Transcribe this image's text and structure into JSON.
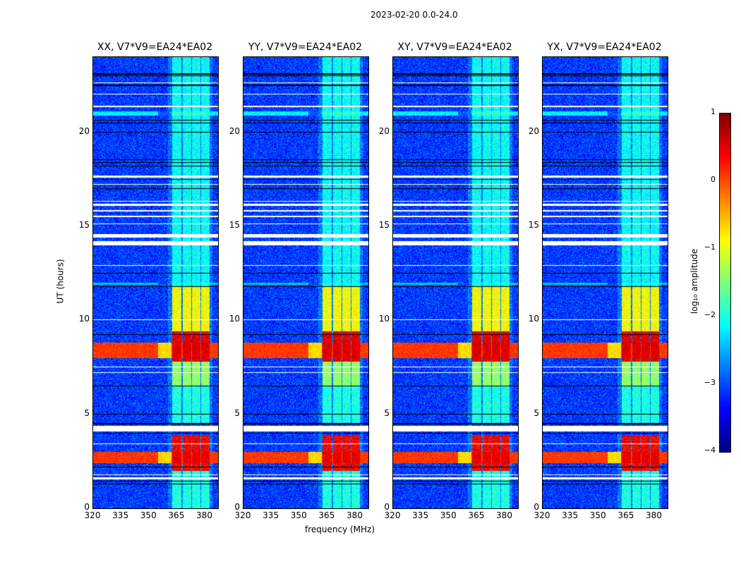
{
  "chart_data": {
    "type": "heatmap",
    "suptitle": "2023-02-20 0.0-24.0",
    "xlabel": "frequency (MHz)",
    "ylabel": "UT (hours)",
    "xlim": [
      320,
      387
    ],
    "ylim": [
      0,
      24
    ],
    "xticks": [
      "320",
      "335",
      "350",
      "365",
      "380"
    ],
    "xtick_values": [
      320,
      335,
      350,
      365,
      380
    ],
    "yticks": [
      "0",
      "5",
      "10",
      "15",
      "20"
    ],
    "ytick_values": [
      0,
      5,
      10,
      15,
      20
    ],
    "panels": [
      {
        "title": "XX, V7*V9=EA24*EA02"
      },
      {
        "title": "YY, V7*V9=EA24*EA02"
      },
      {
        "title": "XY, V7*V9=EA24*EA02"
      },
      {
        "title": "YX, V7*V9=EA24*EA02"
      }
    ],
    "colorbar": {
      "label": "log₁₀ amplitude",
      "range": [
        -4,
        1
      ],
      "ticks": [
        "1",
        "0",
        "−1",
        "−2",
        "−3",
        "−4"
      ],
      "tick_values": [
        1,
        0,
        -1,
        -2,
        -3,
        -4
      ],
      "colormap": "jet"
    },
    "background_log_amplitude": -3.1,
    "rfi_channels_mhz": [
      [
        362.3,
        367.2
      ],
      [
        368,
        372.5
      ],
      [
        373,
        377.4
      ],
      [
        378,
        382.6
      ]
    ],
    "rfi_levels": [
      {
        "ut": [
          0,
          2.0
        ],
        "value": -2.0
      },
      {
        "ut": [
          2.0,
          3.9
        ],
        "value": 0.4
      },
      {
        "ut": [
          4.5,
          6.5
        ],
        "value": -2.0
      },
      {
        "ut": [
          6.5,
          7.8
        ],
        "value": -1.4
      },
      {
        "ut": [
          7.8,
          9.4
        ],
        "value": 0.5
      },
      {
        "ut": [
          9.4,
          11.8
        ],
        "value": -0.9
      },
      {
        "ut": [
          11.8,
          24
        ],
        "value": -2.1
      }
    ],
    "broadband_bands": [
      {
        "ut": [
          8.0,
          8.8
        ],
        "value": 0.1
      },
      {
        "ut": [
          2.4,
          3.0
        ],
        "value": 0.1
      },
      {
        "ut": [
          20.9,
          21.1
        ],
        "value": -2.2
      },
      {
        "ut": [
          11.9,
          12.0
        ],
        "value": -2.4
      }
    ],
    "flagged_rows_ut": [
      [
        1.55,
        1.65
      ],
      [
        1.75,
        1.8
      ],
      [
        3.4,
        3.45
      ],
      [
        4.1,
        4.4
      ],
      [
        7.2,
        7.25
      ],
      [
        7.5,
        7.55
      ],
      [
        10.0,
        10.05
      ],
      [
        12.9,
        12.95
      ],
      [
        14.0,
        14.2
      ],
      [
        14.4,
        14.6
      ],
      [
        15.1,
        15.15
      ],
      [
        15.5,
        15.55
      ],
      [
        15.8,
        15.85
      ],
      [
        16.1,
        16.2
      ],
      [
        16.3,
        16.35
      ],
      [
        17.2,
        17.25
      ],
      [
        17.6,
        17.7
      ],
      [
        21.35,
        21.4
      ],
      [
        22.0,
        22.05
      ],
      [
        22.6,
        22.65
      ]
    ],
    "gap_lines_ut": [
      1.3,
      1.45,
      2.2,
      4.0,
      4.5,
      5.0,
      6.5,
      9.25,
      11.8,
      12.5,
      17.0,
      17.5,
      18.2,
      18.4,
      18.55,
      20.0,
      20.5,
      20.65,
      22.5,
      23.0,
      23.1
    ]
  }
}
